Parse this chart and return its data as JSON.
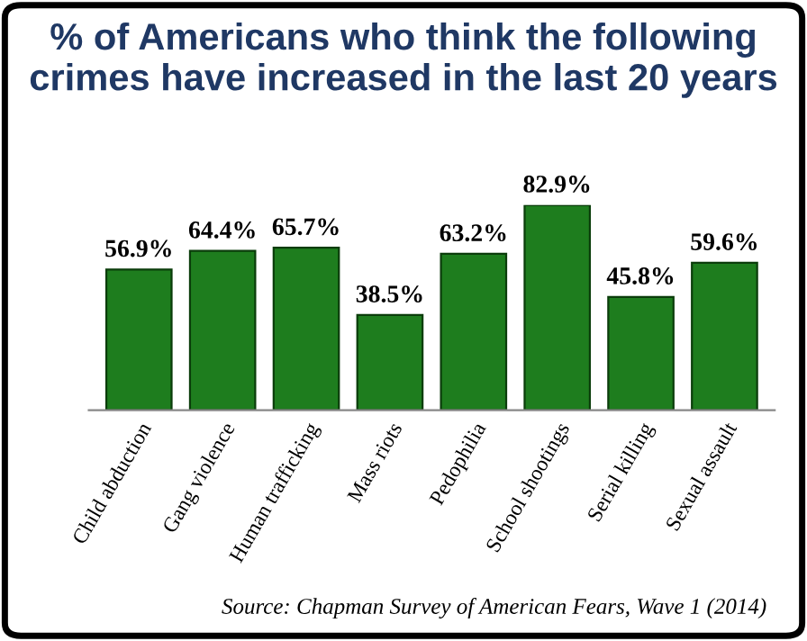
{
  "chart_data": {
    "type": "bar",
    "title": "% of Americans who think the following crimes have increased in the last 20 years",
    "categories": [
      "Child abduction",
      "Gang violence",
      "Human trafficking",
      "Mass riots",
      "Pedophilia",
      "School shootings",
      "Serial killing",
      "Sexual assault"
    ],
    "values": [
      56.9,
      64.4,
      65.7,
      38.5,
      63.2,
      82.9,
      45.8,
      59.6
    ],
    "value_labels": [
      "56.9%",
      "64.4%",
      "65.7%",
      "38.5%",
      "63.2%",
      "82.9%",
      "45.8%",
      "59.6%"
    ],
    "color": "#1e7d1e",
    "grid": false,
    "legend": false,
    "tick_labels": "x",
    "annotations": [
      "Source: Chapman Survey of American Fears, Wave 1 (2014)"
    ]
  }
}
